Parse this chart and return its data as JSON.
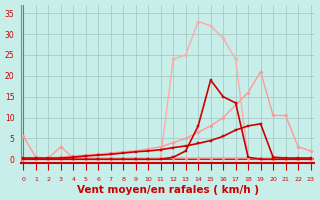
{
  "bg_color": "#c8eeea",
  "grid_color": "#a0c4c0",
  "xlabel": "Vent moyen/en rafales ( km/h )",
  "xlabel_color": "#cc0000",
  "xlabel_fontsize": 7.5,
  "ytick_vals": [
    0,
    5,
    10,
    15,
    20,
    25,
    30,
    35
  ],
  "xtick_vals": [
    0,
    1,
    2,
    3,
    4,
    5,
    6,
    7,
    8,
    9,
    10,
    11,
    12,
    13,
    14,
    15,
    16,
    17,
    18,
    19,
    20,
    21,
    22,
    23
  ],
  "xmin": -0.2,
  "xmax": 23.3,
  "ymin": -1.0,
  "ymax": 37,
  "series": [
    {
      "x": [
        0,
        1,
        2,
        3,
        4,
        5,
        6,
        7,
        8,
        9,
        10,
        11,
        12,
        13,
        14,
        15,
        16,
        17,
        18,
        19,
        20,
        21,
        22,
        23
      ],
      "y": [
        5.5,
        0.5,
        0.3,
        3.0,
        0.3,
        0.3,
        0.3,
        0.3,
        0.3,
        0.3,
        0.3,
        0.3,
        0.3,
        0.3,
        0.3,
        0.3,
        0.3,
        0.3,
        0.3,
        0.3,
        0.3,
        0.3,
        0.3,
        0.3
      ],
      "color": "#ff9999",
      "lw": 1.0,
      "marker": "D",
      "ms": 1.8
    },
    {
      "x": [
        0,
        1,
        2,
        3,
        4,
        5,
        6,
        7,
        8,
        9,
        10,
        11,
        12,
        13,
        14,
        15,
        16,
        17,
        18,
        19,
        20,
        21,
        22,
        23
      ],
      "y": [
        0.3,
        0.3,
        0.3,
        0.5,
        0.8,
        1.0,
        1.2,
        1.5,
        1.8,
        2.0,
        2.5,
        3.0,
        4.0,
        5.0,
        6.5,
        8.0,
        10.0,
        13.0,
        16.0,
        21.0,
        10.5,
        10.5,
        3.0,
        2.0
      ],
      "color": "#ff9999",
      "lw": 1.0,
      "marker": "D",
      "ms": 1.8
    },
    {
      "x": [
        0,
        1,
        2,
        3,
        4,
        5,
        6,
        7,
        8,
        9,
        10,
        11,
        12,
        13,
        14,
        15,
        16,
        17,
        18,
        19,
        20,
        21,
        22,
        23
      ],
      "y": [
        0,
        0,
        0,
        0,
        0,
        0,
        0,
        0,
        0,
        0,
        0,
        0.5,
        24,
        25,
        33,
        32,
        29,
        24,
        0.3,
        0,
        0,
        0,
        0,
        0
      ],
      "color": "#ffaaaa",
      "lw": 1.0,
      "marker": "D",
      "ms": 1.8
    },
    {
      "x": [
        0,
        1,
        2,
        3,
        4,
        5,
        6,
        7,
        8,
        9,
        10,
        11,
        12,
        13,
        14,
        15,
        16,
        17,
        18,
        19,
        20,
        21,
        22,
        23
      ],
      "y": [
        0,
        0,
        0,
        0,
        0,
        0,
        0,
        0,
        0,
        0,
        0,
        0,
        0.5,
        2,
        8,
        19,
        15,
        13.5,
        0.5,
        0,
        0,
        0,
        0,
        0
      ],
      "color": "#cc0000",
      "lw": 1.2,
      "marker": "s",
      "ms": 2.0
    },
    {
      "x": [
        0,
        1,
        2,
        3,
        4,
        5,
        6,
        7,
        8,
        9,
        10,
        11,
        12,
        13,
        14,
        15,
        16,
        17,
        18,
        19,
        20,
        21,
        22,
        23
      ],
      "y": [
        0.3,
        0.3,
        0.3,
        0.3,
        0.5,
        0.8,
        1.0,
        1.2,
        1.5,
        1.8,
        2.0,
        2.3,
        2.8,
        3.2,
        3.8,
        4.5,
        5.5,
        7.0,
        8.0,
        8.5,
        0.5,
        0.3,
        0.3,
        0.3
      ],
      "color": "#cc0000",
      "lw": 1.2,
      "marker": "s",
      "ms": 2.0
    }
  ]
}
